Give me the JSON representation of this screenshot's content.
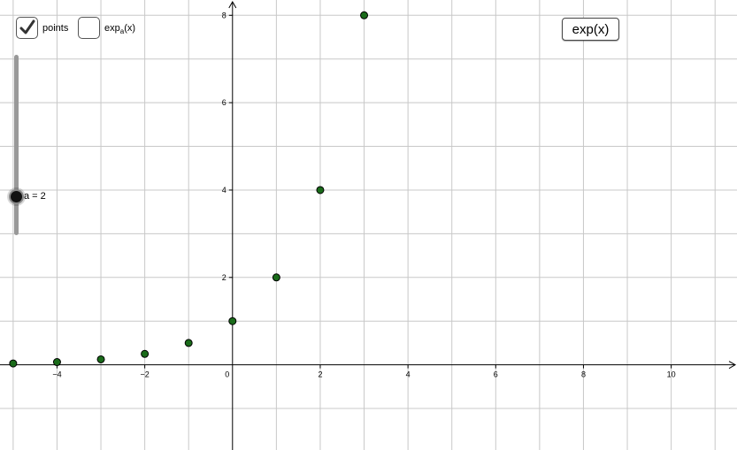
{
  "controls": {
    "points_checkbox": {
      "label": "points",
      "checked": true
    },
    "expa_checkbox": {
      "label_base": "exp",
      "label_sub": "a",
      "label_arg": "(x)",
      "checked": false
    },
    "slider": {
      "label": "a = 2",
      "value": 2
    },
    "exp_button": {
      "label": "exp(x)"
    }
  },
  "chart_data": {
    "type": "scatter",
    "x_range": [
      -5.3,
      11.5
    ],
    "y_range": [
      -1.95,
      8.35
    ],
    "x_ticks": [
      -4,
      -2,
      0,
      2,
      4,
      6,
      8,
      10
    ],
    "y_ticks": [
      2,
      4,
      6,
      8
    ],
    "x_tick_labels": [
      "−4",
      "−2",
      "0",
      "2",
      "4",
      "6",
      "8",
      "10"
    ],
    "y_tick_labels": [
      "2",
      "4",
      "6",
      "8"
    ],
    "grid": true,
    "grid_step": 1,
    "point_color": "#1a6b1a",
    "series": [
      {
        "x": [
          -5,
          -4,
          -3,
          -2,
          -1,
          0,
          1,
          2,
          3
        ],
        "y": [
          0.03125,
          0.0625,
          0.125,
          0.25,
          0.5,
          1,
          2,
          4,
          8
        ]
      }
    ]
  }
}
